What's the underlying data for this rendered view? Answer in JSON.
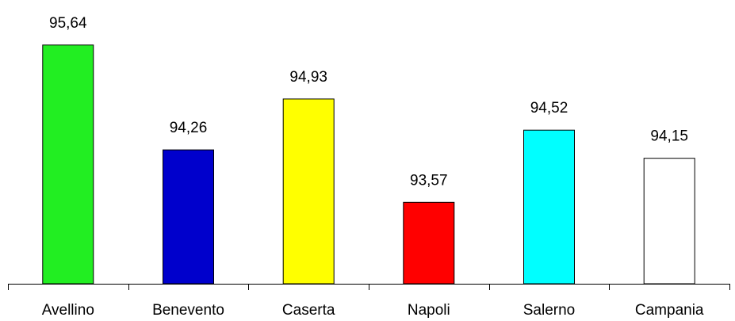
{
  "chart_data": {
    "type": "bar",
    "title": "",
    "xlabel": "",
    "ylabel": "",
    "categories": [
      "Avellino",
      "Benevento",
      "Caserta",
      "Napoli",
      "Salerno",
      "Campania"
    ],
    "values": [
      95.64,
      94.26,
      94.93,
      93.57,
      94.52,
      94.15
    ],
    "value_labels": [
      "95,64",
      "94,26",
      "94,93",
      "93,57",
      "94,52",
      "94,15"
    ],
    "ylim": [
      92.5,
      95.7
    ],
    "grid": false,
    "legend": "none",
    "colors": [
      "#22ee22",
      "#0000cc",
      "#ffff00",
      "#ff0000",
      "#00ffff",
      "#ffffff"
    ],
    "stroke": "#000000"
  }
}
